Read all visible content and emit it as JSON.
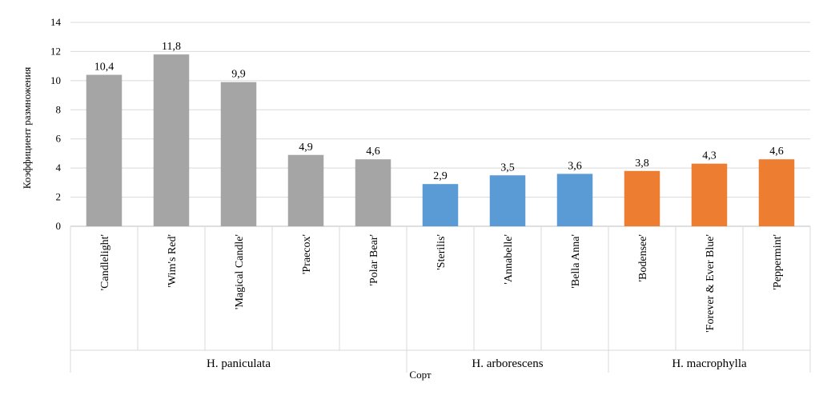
{
  "chart_data": {
    "type": "bar",
    "xlabel": "Сорт",
    "ylabel": "Коэффициент размножения",
    "ylim": [
      0,
      14
    ],
    "yticks": [
      0,
      2,
      4,
      6,
      8,
      10,
      12,
      14
    ],
    "grid": true,
    "legend": "none",
    "colors": {
      "H. paniculata": "#a5a5a5",
      "H. arborescens": "#5b9bd5",
      "H. macrophylla": "#ed7d31"
    },
    "categories": [
      "'Candlelight'",
      "'Wim's Red'",
      "'Magical Candle'",
      "'Praecox'",
      "'Polar Bear'",
      "'Sterilis'",
      "'Annabelle'",
      "'Bella Anna'",
      "'Bodensee'",
      "'Forever & Ever Blue'",
      "'Peppermint'"
    ],
    "values": [
      10.4,
      11.8,
      9.9,
      4.9,
      4.6,
      2.9,
      3.5,
      3.6,
      3.8,
      4.3,
      4.6
    ],
    "value_labels": [
      "10,4",
      "11,8",
      "9,9",
      "4,9",
      "4,6",
      "2,9",
      "3,5",
      "3,6",
      "3,8",
      "4,3",
      "4,6"
    ],
    "groups": [
      {
        "name": "H. paniculata",
        "start": 0,
        "count": 5
      },
      {
        "name": "H. arborescens",
        "start": 5,
        "count": 3
      },
      {
        "name": "H. macrophylla",
        "start": 8,
        "count": 3
      }
    ]
  }
}
